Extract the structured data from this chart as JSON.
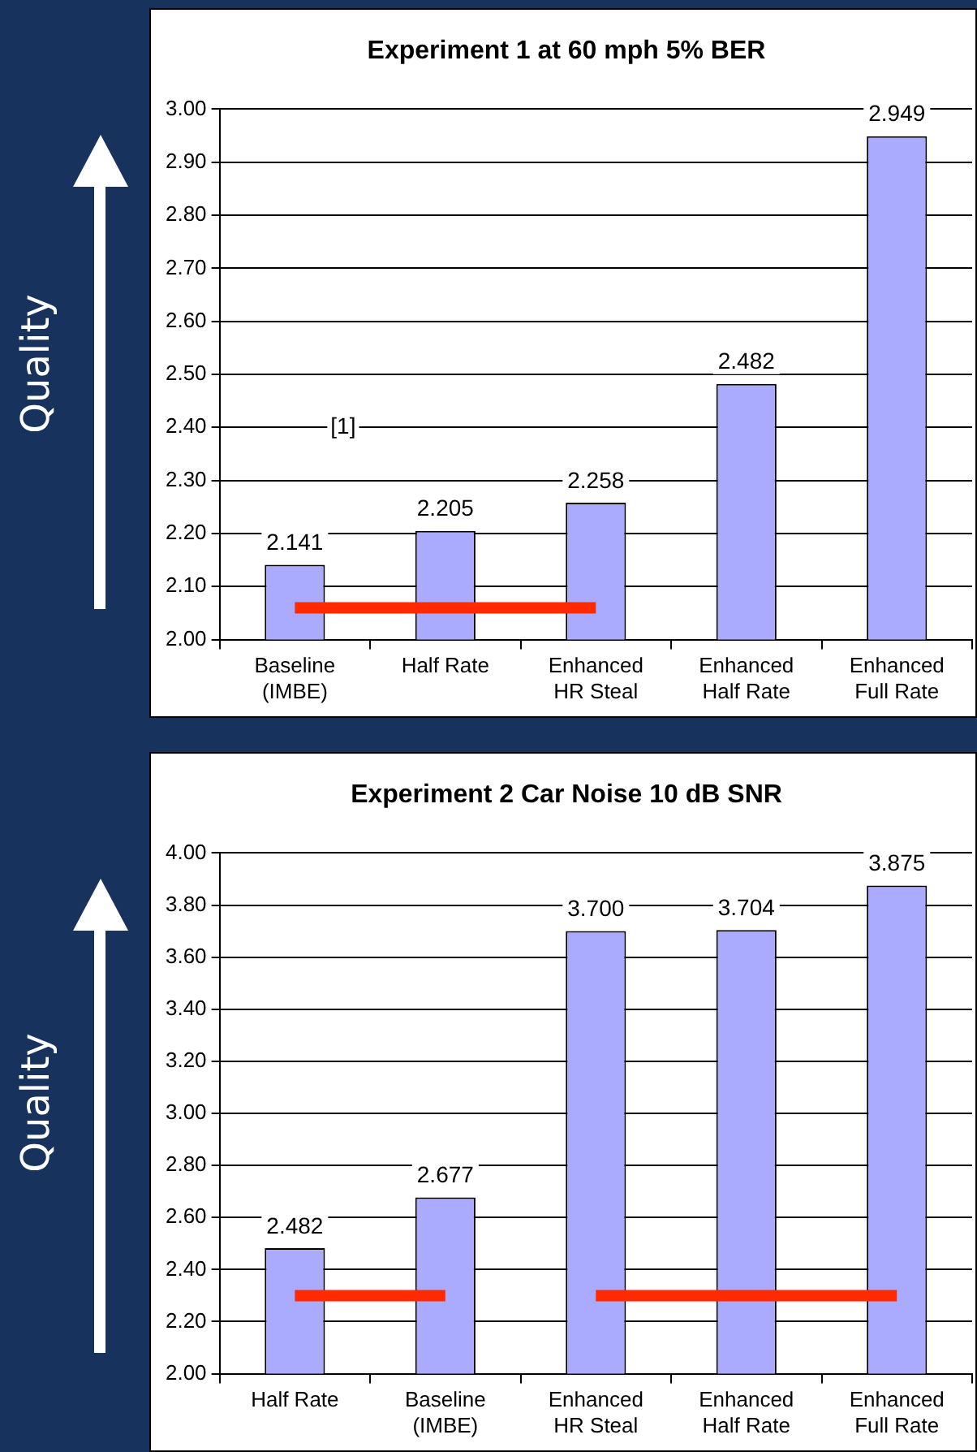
{
  "chart_data": [
    {
      "type": "bar",
      "title": "Experiment 1 at 60 mph 5% BER",
      "ylabel": "Quality",
      "categories": [
        "Baseline\n(IMBE)",
        "Half Rate",
        "Enhanced\nHR Steal",
        "Enhanced\nHalf Rate",
        "Enhanced\nFull Rate"
      ],
      "series": [
        {
          "color": "#aaaaff",
          "values": [
            2.141,
            2.205,
            2.258,
            2.482,
            2.949
          ],
          "value_labels": [
            "2.141",
            "2.205",
            "2.258",
            "2.482",
            "2.949"
          ]
        },
        {
          "type": "line",
          "color": "#ff2a00",
          "values": [
            2.06,
            2.06,
            2.06,
            null,
            null
          ]
        }
      ],
      "ylim": [
        2.0,
        3.0
      ],
      "yticks": [
        {
          "value": 2.0,
          "label": "2.00"
        },
        {
          "value": 2.1,
          "label": "2.10"
        },
        {
          "value": 2.2,
          "label": "2.20"
        },
        {
          "value": 2.3,
          "label": "2.30"
        },
        {
          "value": 2.4,
          "label": "2.40"
        },
        {
          "value": 2.5,
          "label": "2.50"
        },
        {
          "value": 2.6,
          "label": "2.60"
        },
        {
          "value": 2.7,
          "label": "2.70"
        },
        {
          "value": 2.8,
          "label": "2.80"
        },
        {
          "value": 2.9,
          "label": "2.90"
        },
        {
          "value": 3.0,
          "label": "3.00"
        }
      ],
      "grid": "y",
      "legend": false,
      "marker": "none",
      "annotations": [
        "[1]"
      ]
    },
    {
      "type": "bar",
      "title": "Experiment 2 Car Noise 10 dB SNR",
      "ylabel": "Quality",
      "categories": [
        "Half Rate",
        "Baseline\n(IMBE)",
        "Enhanced\nHR Steal",
        "Enhanced\nHalf Rate",
        "Enhanced\nFull Rate"
      ],
      "series": [
        {
          "color": "#aaaaff",
          "values": [
            2.482,
            2.677,
            3.7,
            3.704,
            3.875
          ],
          "value_labels": [
            "2.482",
            "2.677",
            "3.700",
            "3.704",
            "3.875"
          ]
        },
        {
          "type": "line",
          "color": "#ff2a00",
          "values": [
            2.3,
            2.3,
            null,
            null,
            null
          ]
        },
        {
          "type": "line",
          "color": "#ff2a00",
          "values": [
            null,
            null,
            2.3,
            2.3,
            2.3
          ]
        }
      ],
      "ylim": [
        2.0,
        4.0
      ],
      "yticks": [
        {
          "value": 2.0,
          "label": "2.00"
        },
        {
          "value": 2.2,
          "label": "2.20"
        },
        {
          "value": 2.4,
          "label": "2.40"
        },
        {
          "value": 2.6,
          "label": "2.60"
        },
        {
          "value": 2.8,
          "label": "2.80"
        },
        {
          "value": 3.0,
          "label": "3.00"
        },
        {
          "value": 3.2,
          "label": "3.20"
        },
        {
          "value": 3.4,
          "label": "3.40"
        },
        {
          "value": 3.6,
          "label": "3.60"
        },
        {
          "value": 3.8,
          "label": "3.80"
        },
        {
          "value": 4.0,
          "label": "4.00"
        }
      ],
      "grid": "y",
      "legend": false,
      "marker": "none"
    }
  ]
}
